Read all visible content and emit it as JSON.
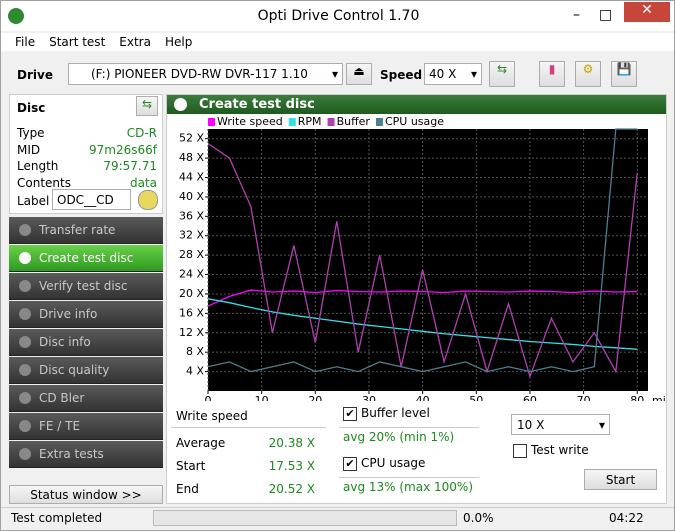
{
  "window": {
    "title": "Opti Drive Control 1.70"
  },
  "menu": [
    "File",
    "Start test",
    "Extra",
    "Help"
  ],
  "toolbar": {
    "drive_label": "Drive",
    "drive": "(F:)  PIONEER DVD-RW  DVR-117 1.10",
    "speed_label": "Speed",
    "speed": "40 X"
  },
  "disc": {
    "title": "Disc",
    "rows": [
      [
        "Type",
        "CD-R"
      ],
      [
        "MID",
        "97m26s66f"
      ],
      [
        "Length",
        "79:57.71"
      ],
      [
        "Contents",
        "data"
      ]
    ],
    "label_name": "Label",
    "label_value": "ODC__CD"
  },
  "nav": {
    "items": [
      "Transfer rate",
      "Create test disc",
      "Verify test disc",
      "Drive info",
      "Disc info",
      "Disc quality",
      "CD Bler",
      "FE / TE",
      "Extra tests"
    ],
    "active": 1
  },
  "status_window": "Status window >>",
  "panel_title": "Create test disc",
  "chart_data": {
    "type": "line",
    "x": [
      0,
      4,
      8,
      12,
      16,
      20,
      24,
      28,
      32,
      36,
      40,
      44,
      48,
      52,
      56,
      60,
      64,
      68,
      72,
      76,
      80
    ],
    "series": [
      {
        "name": "Write speed",
        "color": "#ff00ff",
        "values": [
          17.5,
          19.5,
          20.8,
          20.4,
          20.6,
          20.3,
          20.7,
          20.5,
          20.4,
          20.6,
          20.5,
          20.3,
          20.6,
          20.5,
          20.4,
          20.6,
          20.5,
          20.3,
          20.6,
          20.4,
          20.5
        ]
      },
      {
        "name": "RPM",
        "color": "#33e0e8",
        "values": [
          19,
          18.2,
          17.2,
          16.3,
          15.6,
          15,
          14.4,
          13.8,
          13.3,
          12.8,
          12.3,
          11.8,
          11.4,
          11,
          10.6,
          10.2,
          9.9,
          9.6,
          9.2,
          8.9,
          8.6
        ]
      },
      {
        "name": "Buffer",
        "color": "#b040b0",
        "values": [
          51,
          48,
          38,
          12,
          30,
          10,
          35,
          8,
          28,
          5,
          25,
          6,
          20,
          4,
          18,
          3,
          15,
          6,
          12,
          4,
          45
        ]
      },
      {
        "name": "CPU usage",
        "color": "#4a8090",
        "values": [
          5,
          6,
          4,
          5,
          6,
          4,
          5,
          4,
          6,
          5,
          4,
          5,
          6,
          4,
          5,
          4,
          5,
          4,
          5,
          54,
          54
        ]
      }
    ],
    "xlim": [
      0,
      82
    ],
    "ylim": [
      0,
      54
    ],
    "xticks": [
      0,
      10,
      20,
      30,
      40,
      50,
      60,
      70,
      80
    ],
    "yticks": [
      {
        "value": 4,
        "label": "4 X"
      },
      {
        "value": 8,
        "label": "8 X"
      },
      {
        "value": 12,
        "label": "12 X"
      },
      {
        "value": 16,
        "label": "16 X"
      },
      {
        "value": 20,
        "label": "20 X"
      },
      {
        "value": 24,
        "label": "24 X"
      },
      {
        "value": 28,
        "label": "28 X"
      },
      {
        "value": 32,
        "label": "32 X"
      },
      {
        "value": 36,
        "label": "36 X"
      },
      {
        "value": 40,
        "label": "40 X"
      },
      {
        "value": 44,
        "label": "44 X"
      },
      {
        "value": 48,
        "label": "48 X"
      },
      {
        "value": 52,
        "label": "52 X"
      }
    ],
    "xlabel": "min",
    "grid": true
  },
  "stats": {
    "title": "Write speed",
    "rows": [
      [
        "Average",
        "20.38 X"
      ],
      [
        "Start",
        "17.53 X"
      ],
      [
        "End",
        "20.52 X"
      ]
    ]
  },
  "options": {
    "buffer": {
      "label": "Buffer level",
      "checked": true,
      "summary": "avg 20% (min 1%)"
    },
    "cpu": {
      "label": "CPU usage",
      "checked": true,
      "summary": "avg 13% (max 100%)"
    },
    "speed": "10 X",
    "test_write": {
      "label": "Test write",
      "checked": false
    },
    "start": "Start"
  },
  "status": {
    "text": "Test completed",
    "progress": "0.0%",
    "time": "04:22"
  }
}
